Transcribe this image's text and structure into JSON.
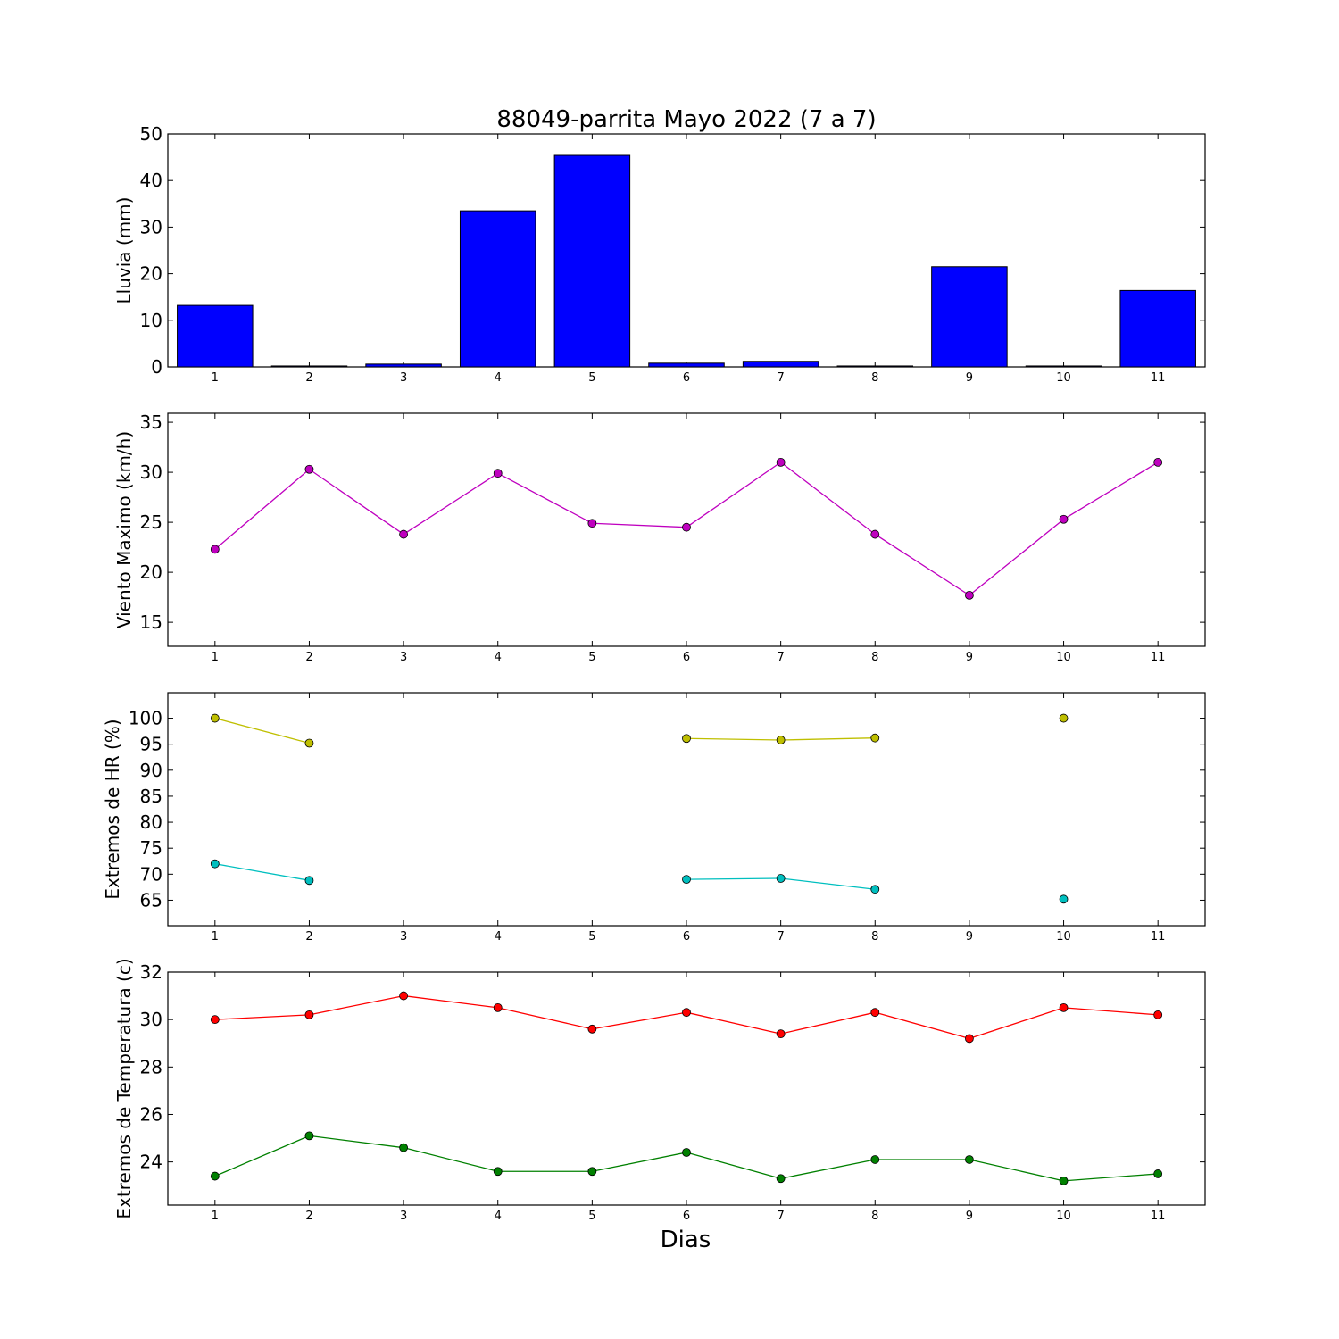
{
  "chart_data": [
    {
      "type": "bar",
      "title": "88049-parrita Mayo 2022  (7 a 7)",
      "ylabel": "Lluvia (mm)",
      "x": [
        1,
        2,
        3,
        4,
        5,
        6,
        7,
        8,
        9,
        10,
        11
      ],
      "values": [
        13.2,
        0.2,
        0.6,
        33.5,
        45.4,
        0.8,
        1.2,
        0.2,
        21.5,
        0.2,
        16.4
      ],
      "ylim": [
        0,
        50
      ],
      "yticks": [
        0,
        10,
        20,
        30,
        40,
        50
      ],
      "color": "#0000ff"
    },
    {
      "type": "line",
      "ylabel": "Viento Maximo (km/h)",
      "x": [
        1,
        2,
        3,
        4,
        5,
        6,
        7,
        8,
        9,
        10,
        11
      ],
      "series": [
        {
          "values": [
            22.3,
            30.3,
            23.8,
            29.9,
            24.9,
            24.5,
            31.0,
            23.8,
            17.7,
            25.3,
            31.0
          ],
          "color": "#bf00bf"
        }
      ],
      "ylim": [
        12.6,
        35.9
      ],
      "yticks": [
        15,
        20,
        25,
        30,
        35
      ]
    },
    {
      "type": "line",
      "ylabel": "Extremos de HR (%)",
      "x": [
        1,
        2,
        3,
        4,
        5,
        6,
        7,
        8,
        9,
        10,
        11
      ],
      "series": [
        {
          "values": [
            100,
            95.2,
            null,
            null,
            null,
            96.1,
            95.8,
            96.2,
            null,
            100,
            null
          ],
          "color": "#bfbf00"
        },
        {
          "values": [
            72.0,
            68.8,
            null,
            null,
            null,
            69.0,
            69.2,
            67.1,
            null,
            65.2,
            null
          ],
          "color": "#00bfbf"
        }
      ],
      "ylim": [
        60.1,
        104.9
      ],
      "yticks": [
        65,
        70,
        75,
        80,
        85,
        90,
        95,
        100
      ]
    },
    {
      "type": "line",
      "ylabel": "Extremos de Temperatura (c)",
      "xlabel": "Dias",
      "x": [
        1,
        2,
        3,
        4,
        5,
        6,
        7,
        8,
        9,
        10,
        11
      ],
      "series": [
        {
          "values": [
            30.0,
            30.2,
            31.0,
            30.5,
            29.6,
            30.3,
            29.4,
            30.3,
            29.2,
            30.5,
            30.2
          ],
          "color": "#ff0000"
        },
        {
          "values": [
            23.4,
            25.1,
            24.6,
            23.6,
            23.6,
            24.4,
            23.3,
            24.1,
            24.1,
            23.2,
            23.5
          ],
          "color": "#008000"
        }
      ],
      "ylim": [
        22.18,
        32.0
      ],
      "yticks": [
        24,
        26,
        28,
        30,
        32
      ]
    }
  ],
  "xlim": [
    0.5,
    11.5
  ],
  "xticks": [
    1,
    2,
    3,
    4,
    5,
    6,
    7,
    8,
    9,
    10,
    11
  ]
}
